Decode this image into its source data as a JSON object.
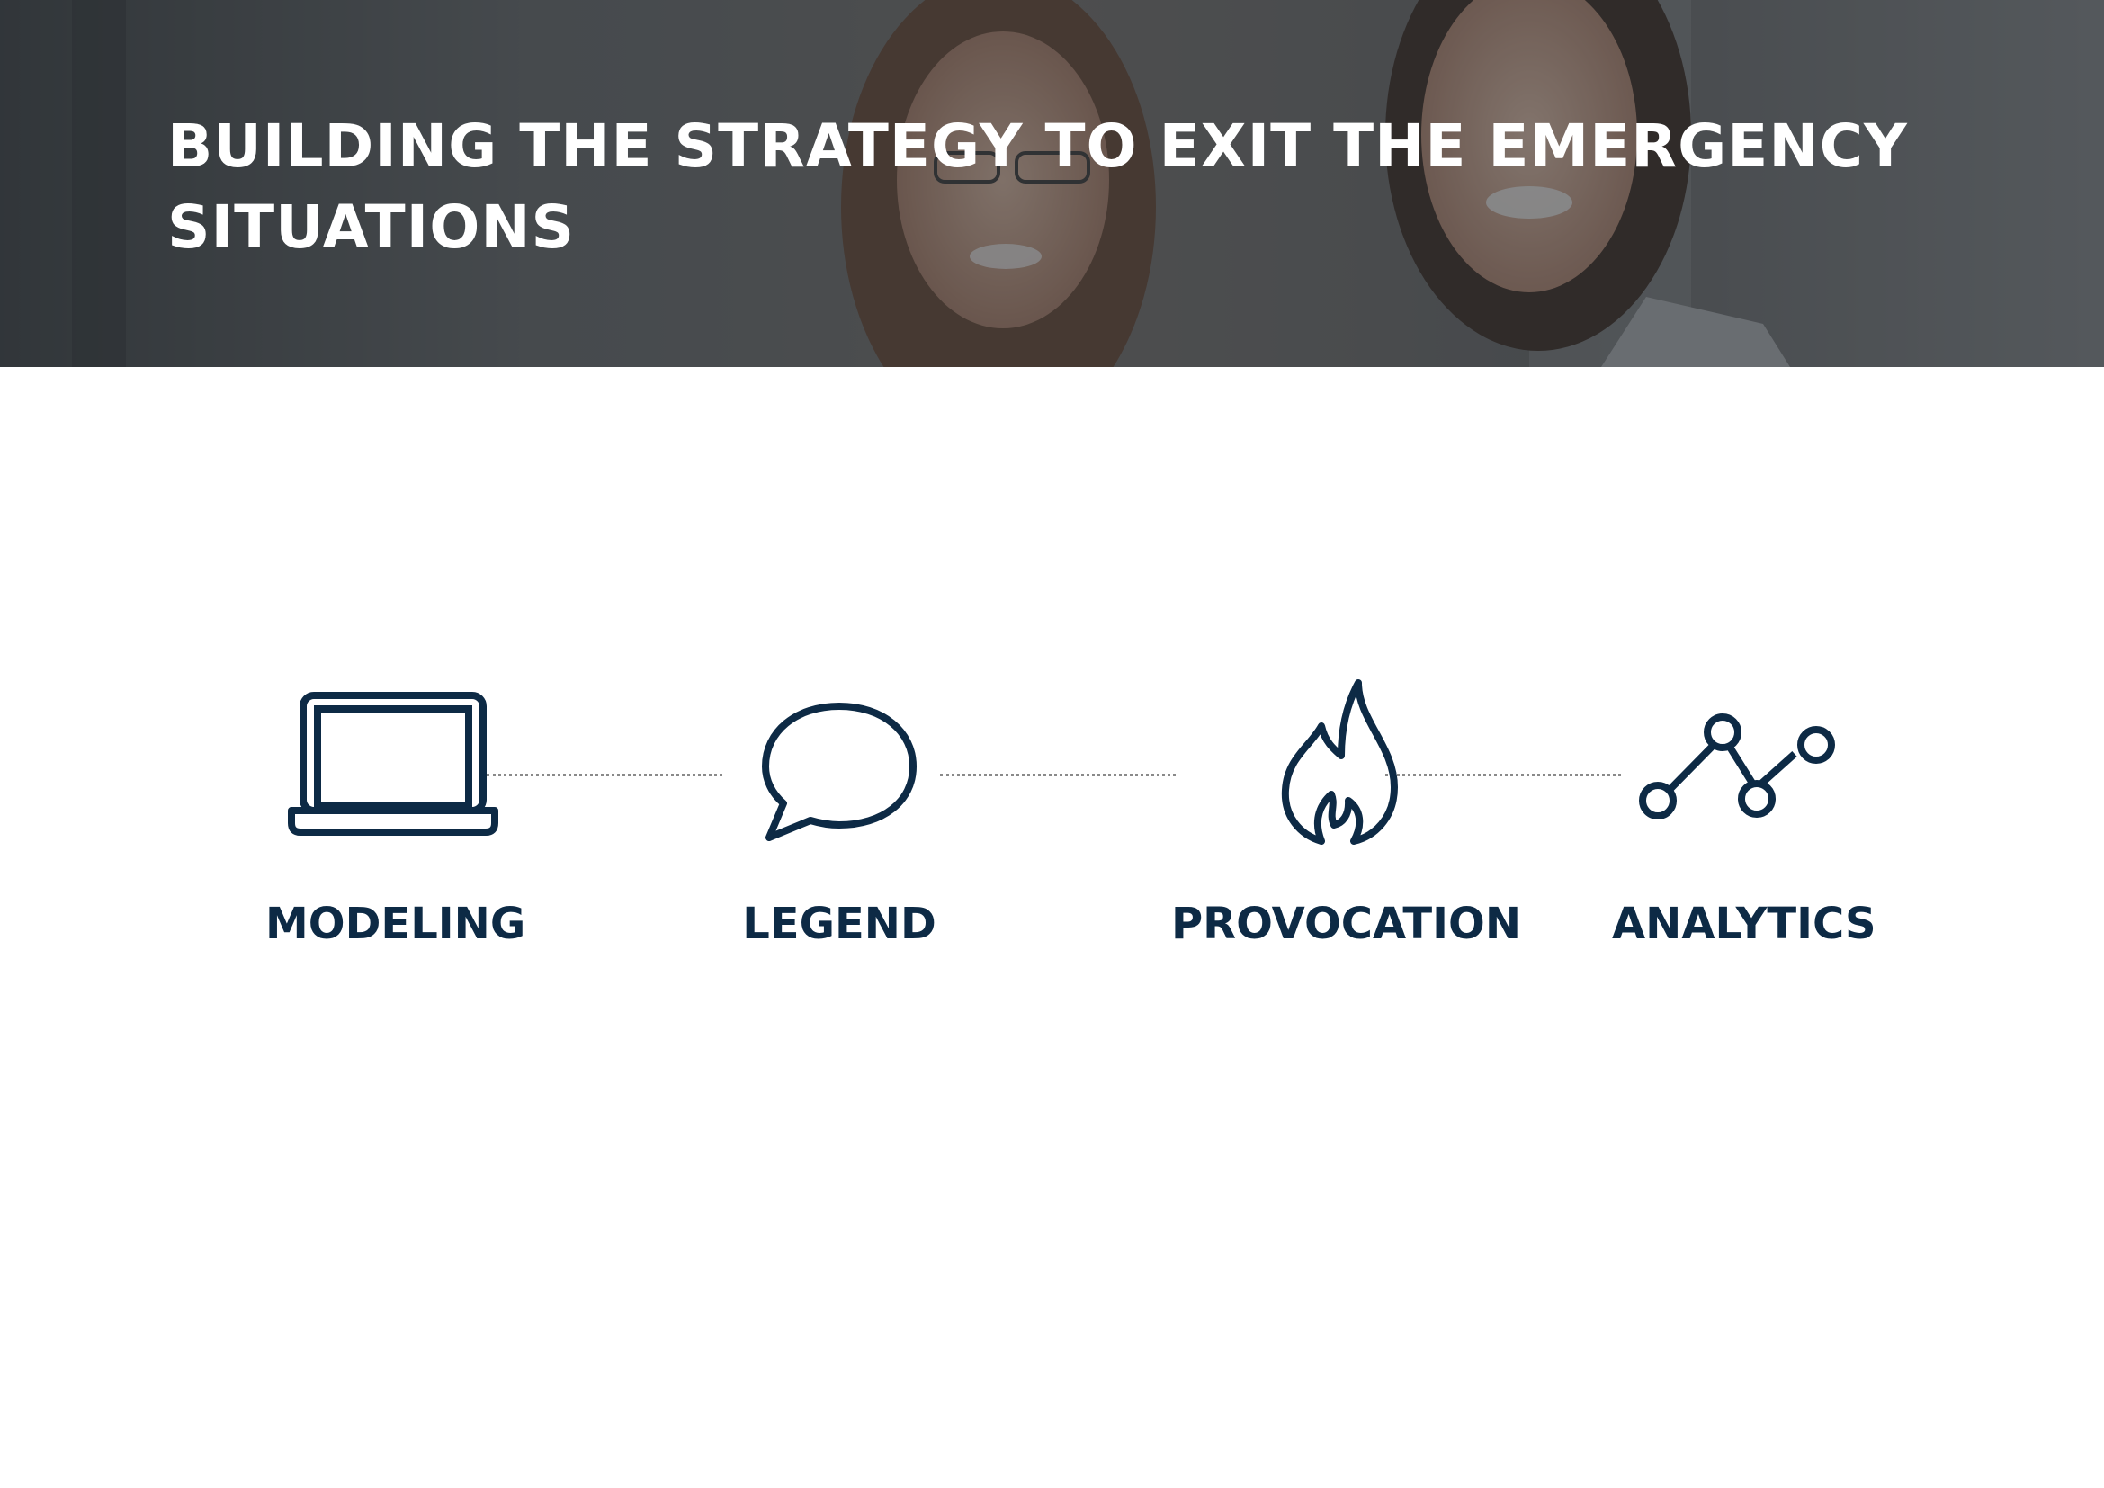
{
  "slide": {
    "title_lines": [
      "BUILDING THE STRATEGY TO EXIT THE EMERGENCY",
      "SITUATIONS"
    ]
  },
  "steps": [
    {
      "label": "MODELING",
      "icon": "laptop-icon"
    },
    {
      "label": "LEGEND",
      "icon": "speech-bubble-icon"
    },
    {
      "label": "PROVOCATION",
      "icon": "flame-icon"
    },
    {
      "label": "ANALYTICS",
      "icon": "line-chart-icon"
    }
  ],
  "colors": {
    "icon_and_label": "#0d2a45",
    "title_text": "#ffffff",
    "connector": "#8a8a8a"
  }
}
